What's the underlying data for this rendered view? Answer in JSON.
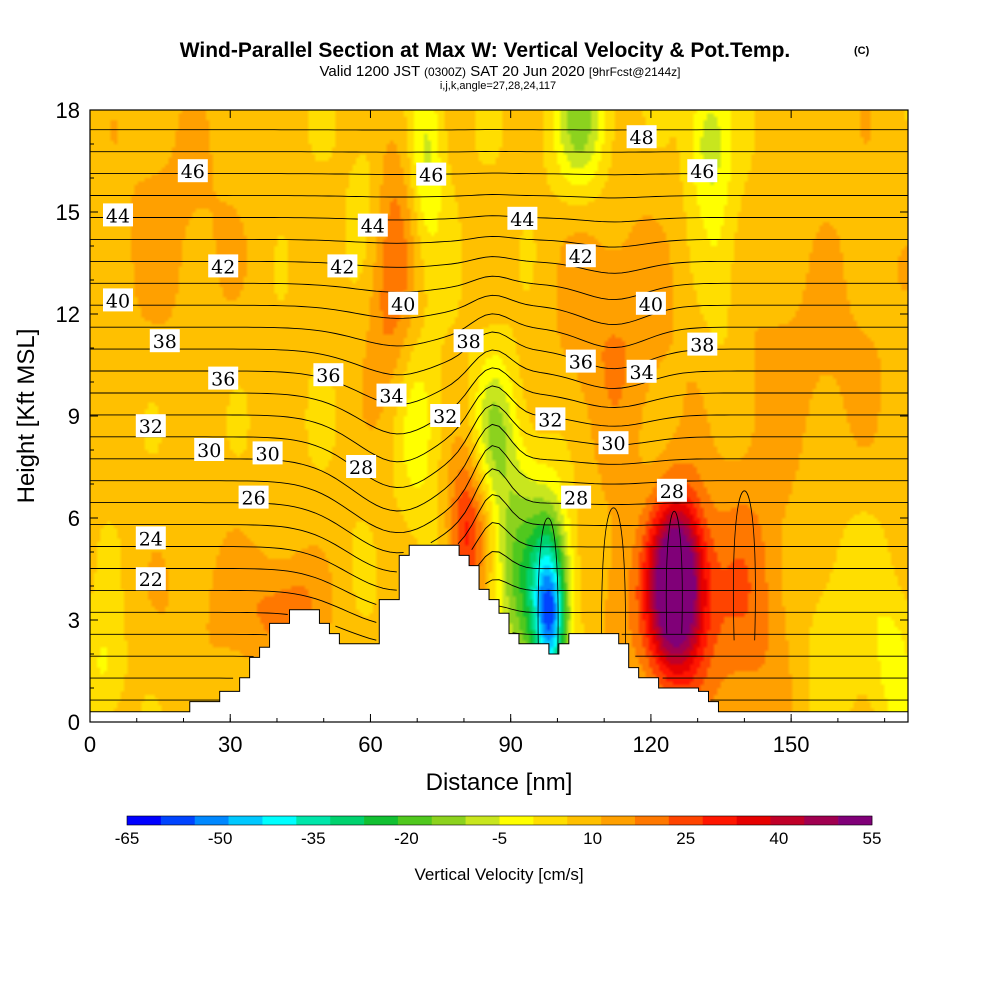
{
  "chart_data": {
    "type": "heatmap",
    "title": "Wind-Parallel Section at Max W: Vertical Velocity & Pot.Temp.",
    "title_mark": "(C)",
    "subtitle": {
      "valid": "Valid 1200 JST",
      "zulu": "(0300Z)",
      "date": "SAT 20 Jun 2020",
      "forecast": "[9hrFcst@2144z]"
    },
    "grid_info": "i,j,k,angle=27,28,24,117",
    "xlabel": "Distance [nm]",
    "ylabel": "Height [Kft MSL]",
    "xlim": [
      0,
      175
    ],
    "ylim": [
      0,
      18
    ],
    "x_ticks": [
      "0",
      "30",
      "60",
      "90",
      "120",
      "150"
    ],
    "y_ticks": [
      "0",
      "3",
      "6",
      "9",
      "12",
      "15",
      "18"
    ],
    "colorbar": {
      "label": "Vertical Velocity [cm/s]",
      "tick_labels": [
        "-65",
        "-50",
        "-35",
        "-20",
        "-5",
        "10",
        "25",
        "40",
        "55"
      ],
      "colors": [
        "#0000ff",
        "#0044ff",
        "#0088ff",
        "#00c8ff",
        "#00ffff",
        "#00e6aa",
        "#00d26e",
        "#12c032",
        "#50c81e",
        "#8cd21e",
        "#c8e61e",
        "#ffff00",
        "#ffde00",
        "#ffc000",
        "#ffa000",
        "#ff7800",
        "#ff4400",
        "#ff1600",
        "#e60000",
        "#c00028",
        "#a00050",
        "#800078"
      ]
    },
    "terrain_kft": [
      0.3,
      0.3,
      0.3,
      0.3,
      0.3,
      0.3,
      0.3,
      0.3,
      0.3,
      0.3,
      0.6,
      0.6,
      0.6,
      0.9,
      0.9,
      1.3,
      1.9,
      2.2,
      2.9,
      2.9,
      3.3,
      3.3,
      3.3,
      2.9,
      2.6,
      2.3,
      2.3,
      2.3,
      2.3,
      3.6,
      3.6,
      4.9,
      5.2,
      5.2,
      5.2,
      5.2,
      5.2,
      4.9,
      4.6,
      3.9,
      3.6,
      3.2,
      2.6,
      2.3,
      2.3,
      2.3,
      2.0,
      2.3,
      2.6,
      2.6,
      2.6,
      2.6,
      2.6,
      2.3,
      1.6,
      1.3,
      1.3,
      1.0,
      1.0,
      1.0,
      1.0,
      0.9,
      0.6,
      0.3,
      0.3,
      0.3,
      0.3,
      0.3,
      0.3,
      0.3,
      0.3,
      0.3,
      0.3,
      0.3,
      0.3,
      0.3,
      0.3,
      0.3,
      0.3,
      0.3,
      0.3,
      0.3
    ],
    "w_features": [
      {
        "x": 125,
        "y": 3.6,
        "sx": 4.5,
        "sy": 1.8,
        "w": 48
      },
      {
        "x": 126,
        "y": 4.8,
        "sx": 3.5,
        "sy": 1.5,
        "w": 20
      },
      {
        "x": 140,
        "y": 3.5,
        "sx": 8,
        "sy": 3.0,
        "w": 14
      },
      {
        "x": 113,
        "y": 3.8,
        "sx": 4,
        "sy": 2.5,
        "w": 7
      },
      {
        "x": 98,
        "y": 3.6,
        "sx": 3.2,
        "sy": 2.0,
        "w": -44
      },
      {
        "x": 98.5,
        "y": 3.0,
        "sx": 2.0,
        "sy": 1.2,
        "w": -20
      },
      {
        "x": 91,
        "y": 4.6,
        "sx": 3.5,
        "sy": 2.5,
        "w": -20
      },
      {
        "x": 86.5,
        "y": 8.6,
        "sx": 3.0,
        "sy": 1.5,
        "w": -16
      },
      {
        "x": 80.5,
        "y": 5.6,
        "sx": 2.8,
        "sy": 1.6,
        "w": 22
      },
      {
        "x": 70,
        "y": 8.6,
        "sx": 3.5,
        "sy": 2.0,
        "w": -10
      },
      {
        "x": 64,
        "y": 13.6,
        "sx": 4,
        "sy": 3.2,
        "w": 14
      },
      {
        "x": 72,
        "y": 16.6,
        "sx": 2.6,
        "sy": 2.0,
        "w": -14
      },
      {
        "x": 105,
        "y": 17.6,
        "sx": 4,
        "sy": 1.4,
        "w": -20
      },
      {
        "x": 112,
        "y": 11.6,
        "sx": 9,
        "sy": 2.6,
        "w": 10
      },
      {
        "x": 132,
        "y": 17.2,
        "sx": 3,
        "sy": 1.5,
        "w": -14
      },
      {
        "x": 135,
        "y": 13.6,
        "sx": 3,
        "sy": 3.0,
        "w": -6
      },
      {
        "x": 42,
        "y": 3.3,
        "sx": 6,
        "sy": 1.2,
        "w": 12
      },
      {
        "x": 25,
        "y": 3.5,
        "sx": 10,
        "sy": 2.0,
        "w": 5
      },
      {
        "x": 18,
        "y": 14.6,
        "sx": 12,
        "sy": 3.0,
        "w": 6
      },
      {
        "x": 60,
        "y": 15.6,
        "sx": 3,
        "sy": 2.0,
        "w": -8
      },
      {
        "x": 165,
        "y": 13.6,
        "sx": 10,
        "sy": 5.0,
        "w": 3
      },
      {
        "x": 160,
        "y": 3.0,
        "sx": 8,
        "sy": 2.0,
        "w": -6
      },
      {
        "x": 172,
        "y": 1.6,
        "sx": 3,
        "sy": 1.5,
        "w": -8
      },
      {
        "x": 3,
        "y": 1.6,
        "sx": 3,
        "sy": 1.2,
        "w": -8
      },
      {
        "x": 150,
        "y": 10.6,
        "sx": 12,
        "sy": 2.0,
        "w": 5
      }
    ],
    "theta_contours_k": [
      22,
      23,
      24,
      25,
      26,
      27,
      28,
      29,
      30,
      31,
      32,
      33,
      34,
      35,
      36,
      37,
      38,
      39,
      40,
      41,
      42,
      43,
      44,
      45,
      46,
      47,
      48,
      49,
      50
    ],
    "contour_labels": [
      {
        "text": "46",
        "x": 22,
        "y": 16.2
      },
      {
        "text": "44",
        "x": 6,
        "y": 14.9
      },
      {
        "text": "42",
        "x": 28.5,
        "y": 13.4
      },
      {
        "text": "40",
        "x": 6,
        "y": 12.4
      },
      {
        "text": "38",
        "x": 16,
        "y": 11.2
      },
      {
        "text": "36",
        "x": 28.5,
        "y": 10.1
      },
      {
        "text": "32",
        "x": 13,
        "y": 8.7
      },
      {
        "text": "30",
        "x": 25.5,
        "y": 8.0
      },
      {
        "text": "30",
        "x": 38,
        "y": 7.9
      },
      {
        "text": "26",
        "x": 35,
        "y": 6.6
      },
      {
        "text": "24",
        "x": 13,
        "y": 5.4
      },
      {
        "text": "22",
        "x": 13,
        "y": 4.2
      },
      {
        "text": "46",
        "x": 73,
        "y": 16.1
      },
      {
        "text": "44",
        "x": 60.5,
        "y": 14.6
      },
      {
        "text": "42",
        "x": 54,
        "y": 13.4
      },
      {
        "text": "40",
        "x": 67,
        "y": 12.3
      },
      {
        "text": "36",
        "x": 51,
        "y": 10.2
      },
      {
        "text": "34",
        "x": 64.5,
        "y": 9.6
      },
      {
        "text": "28",
        "x": 58,
        "y": 7.5
      },
      {
        "text": "38",
        "x": 81,
        "y": 11.2
      },
      {
        "text": "32",
        "x": 76,
        "y": 9.0
      },
      {
        "text": "44",
        "x": 92.5,
        "y": 14.8
      },
      {
        "text": "42",
        "x": 105,
        "y": 13.7
      },
      {
        "text": "36",
        "x": 105,
        "y": 10.6
      },
      {
        "text": "32",
        "x": 98.5,
        "y": 8.9
      },
      {
        "text": "30",
        "x": 112,
        "y": 8.2
      },
      {
        "text": "28",
        "x": 104,
        "y": 6.6
      },
      {
        "text": "48",
        "x": 118,
        "y": 17.2
      },
      {
        "text": "46",
        "x": 131,
        "y": 16.2
      },
      {
        "text": "40",
        "x": 120,
        "y": 12.3
      },
      {
        "text": "34",
        "x": 118,
        "y": 10.3
      },
      {
        "text": "38",
        "x": 131,
        "y": 11.1
      },
      {
        "text": "28",
        "x": 124.5,
        "y": 6.8
      }
    ]
  }
}
